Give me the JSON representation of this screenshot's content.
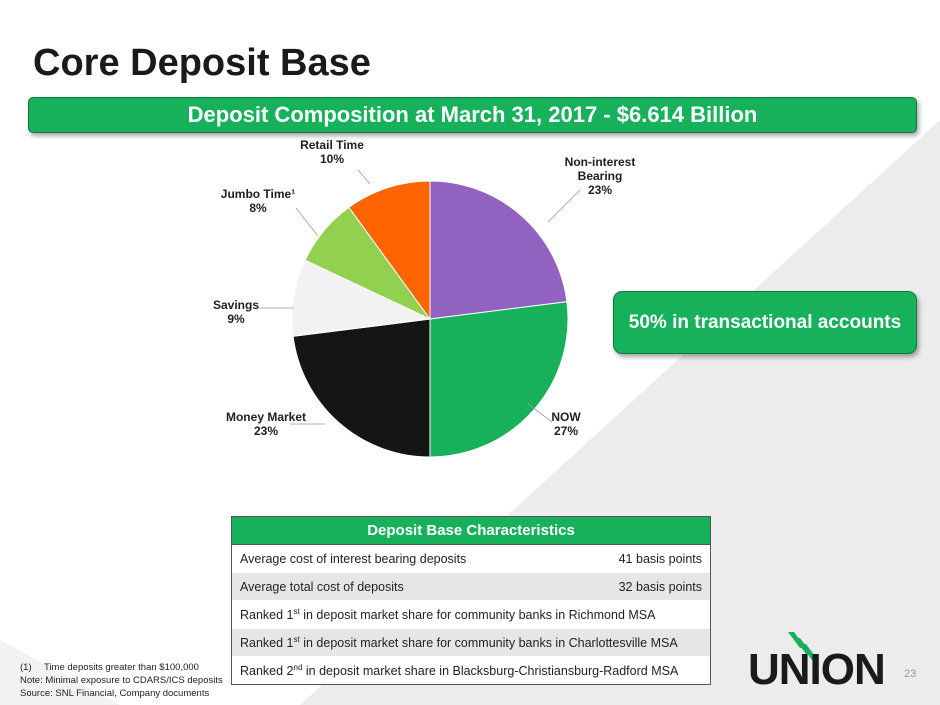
{
  "slide": {
    "title": "Core Deposit Base",
    "banner": "Deposit Composition at March 31, 2017 - $6.614 Billion",
    "callout": "50% in transactional accounts",
    "page_number": "23"
  },
  "chart_data": {
    "type": "pie",
    "title": "",
    "slices": [
      {
        "label": "Non-interest Bearing",
        "value": 23,
        "value_label": "23%",
        "color": "#9262c1"
      },
      {
        "label": "NOW",
        "value": 27,
        "value_label": "27%",
        "color": "#17b15c"
      },
      {
        "label": "Money Market",
        "value": 23,
        "value_label": "23%",
        "color": "#151515"
      },
      {
        "label": "Savings",
        "value": 9,
        "value_label": "9%",
        "color": "#f2f2f2"
      },
      {
        "label": "Jumbo Time¹",
        "value": 8,
        "value_label": "8%",
        "color": "#92d050"
      },
      {
        "label": "Retail Time",
        "value": 10,
        "value_label": "10%",
        "color": "#ff6400"
      }
    ]
  },
  "table": {
    "header": "Deposit Base Characteristics",
    "rows": [
      {
        "label": "Average cost of interest bearing deposits",
        "value": "41 basis points"
      },
      {
        "label": "Average total cost of deposits",
        "value": "32 basis points"
      },
      {
        "label_pre": "Ranked 1",
        "sup": "st",
        "label_post": " in deposit market share for community banks in Richmond MSA"
      },
      {
        "label_pre": "Ranked 1",
        "sup": "st",
        "label_post": " in deposit market share for community banks in Charlottesville MSA"
      },
      {
        "label_pre": "Ranked 2",
        "sup": "nd",
        "label_post": " in deposit market share in Blacksburg-Christiansburg-Radford MSA"
      }
    ]
  },
  "footnotes": {
    "note1_num": "(1)",
    "note1_text": "Time deposits greater than $100,000",
    "note2": "Note: Minimal exposure to CDARS/ICS deposits",
    "note3": "Source: SNL Financial, Company documents"
  },
  "logo": {
    "text": "UNION",
    "color": "#17b15c"
  }
}
